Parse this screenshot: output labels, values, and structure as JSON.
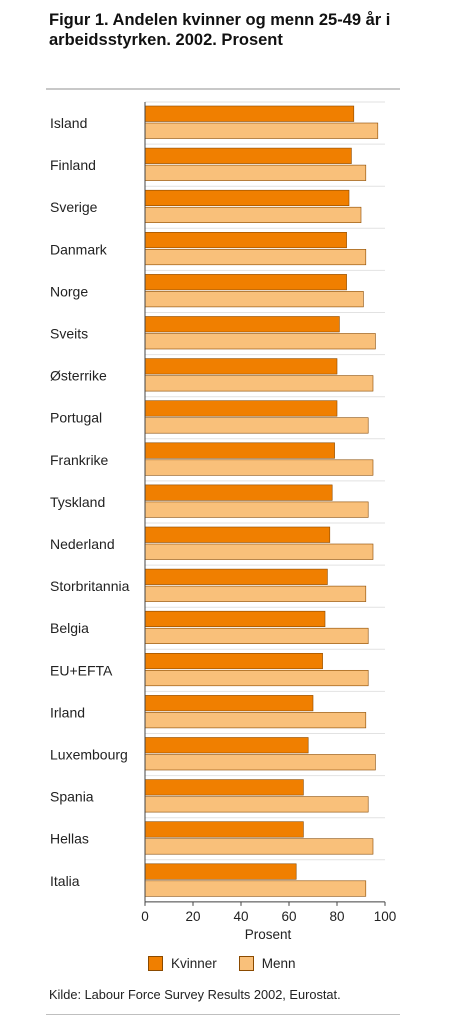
{
  "title": "Figur 1. Andelen kvinner og menn 25-49 år i arbeidsstyrken. 2002. Prosent",
  "source": "Kilde: Labour Force Survey Results 2002, Eurostat.",
  "colors": {
    "kvinner": "#f07f00",
    "menn": "#f9c07a",
    "stroke": "#8a4a00",
    "grid": "#e2e2e2"
  },
  "chart_data": {
    "type": "bar",
    "orientation": "horizontal",
    "xlabel": "Prosent",
    "xlim": [
      0,
      100
    ],
    "xticks": [
      0,
      20,
      40,
      60,
      80,
      100
    ],
    "grid": "horizontal separators between categories",
    "legend_position": "bottom",
    "categories": [
      "Island",
      "Finland",
      "Sverige",
      "Danmark",
      "Norge",
      "Sveits",
      "Østerrike",
      "Portugal",
      "Frankrike",
      "Tyskland",
      "Nederland",
      "Storbritannia",
      "Belgia",
      "EU+EFTA",
      "Irland",
      "Luxembourg",
      "Spania",
      "Hellas",
      "Italia"
    ],
    "series": [
      {
        "name": "Kvinner",
        "values": [
          87,
          86,
          85,
          84,
          84,
          81,
          80,
          80,
          79,
          78,
          77,
          76,
          75,
          74,
          70,
          68,
          66,
          66,
          63
        ]
      },
      {
        "name": "Menn",
        "values": [
          97,
          92,
          90,
          92,
          91,
          96,
          95,
          93,
          95,
          93,
          95,
          92,
          93,
          93,
          92,
          96,
          93,
          95,
          92
        ]
      }
    ]
  }
}
